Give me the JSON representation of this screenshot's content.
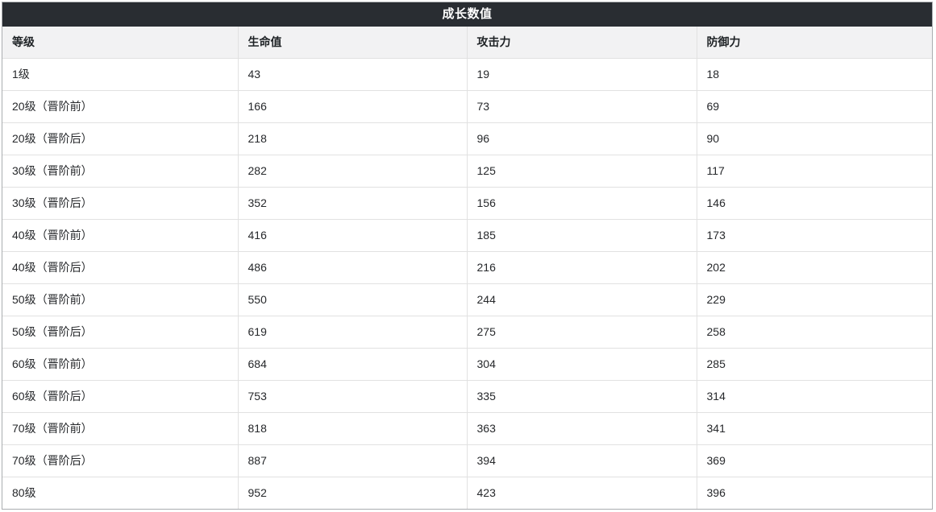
{
  "title": "成长数值",
  "table": {
    "columns": [
      "等级",
      "生命值",
      "攻击力",
      "防御力"
    ],
    "rows": [
      [
        "1级",
        "43",
        "19",
        "18"
      ],
      [
        "20级（晋阶前）",
        "166",
        "73",
        "69"
      ],
      [
        "20级（晋阶后）",
        "218",
        "96",
        "90"
      ],
      [
        "30级（晋阶前）",
        "282",
        "125",
        "117"
      ],
      [
        "30级（晋阶后）",
        "352",
        "156",
        "146"
      ],
      [
        "40级（晋阶前）",
        "416",
        "185",
        "173"
      ],
      [
        "40级（晋阶后）",
        "486",
        "216",
        "202"
      ],
      [
        "50级（晋阶前）",
        "550",
        "244",
        "229"
      ],
      [
        "50级（晋阶后）",
        "619",
        "275",
        "258"
      ],
      [
        "60级（晋阶前）",
        "684",
        "304",
        "285"
      ],
      [
        "60级（晋阶后）",
        "753",
        "335",
        "314"
      ],
      [
        "70级（晋阶前）",
        "818",
        "363",
        "341"
      ],
      [
        "70级（晋阶后）",
        "887",
        "394",
        "369"
      ],
      [
        "80级",
        "952",
        "423",
        "396"
      ]
    ]
  },
  "colors": {
    "title_bar_bg": "#292d32",
    "title_text": "#ffffff",
    "outer_border": "#aaadb0",
    "inner_border": "#e1e1e1",
    "header_row_bg": "#f2f2f3",
    "row_bg": "#ffffff",
    "text": "#26282b"
  }
}
